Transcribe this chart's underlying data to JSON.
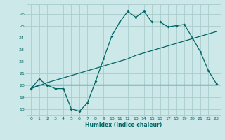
{
  "xlabel": "Humidex (Indice chaleur)",
  "bg_color": "#cde8e8",
  "grid_color": "#a8cccc",
  "line_color": "#006666",
  "xlim": [
    -0.5,
    23.5
  ],
  "ylim": [
    17.5,
    26.8
  ],
  "yticks": [
    18,
    19,
    20,
    21,
    22,
    23,
    24,
    25,
    26
  ],
  "xticks": [
    0,
    1,
    2,
    3,
    4,
    5,
    6,
    7,
    8,
    9,
    10,
    11,
    12,
    13,
    14,
    15,
    16,
    17,
    18,
    19,
    20,
    21,
    22,
    23
  ],
  "line1_x": [
    0,
    1,
    2,
    3,
    4,
    5,
    6,
    7,
    8,
    9,
    10,
    11,
    12,
    13,
    14,
    15,
    16,
    17,
    18,
    19,
    20,
    21,
    22,
    23
  ],
  "line1_y": [
    19.7,
    20.5,
    20.0,
    19.7,
    19.7,
    18.0,
    17.8,
    18.5,
    20.3,
    22.2,
    24.1,
    25.3,
    26.2,
    25.7,
    26.2,
    25.3,
    25.3,
    24.9,
    25.0,
    25.1,
    24.0,
    22.8,
    21.2,
    20.1
  ],
  "line2_x": [
    0,
    2,
    3,
    4,
    5,
    6,
    7,
    8,
    9,
    10,
    11,
    12,
    13,
    14,
    15,
    16,
    17,
    18,
    19,
    20,
    21,
    22,
    23
  ],
  "line2_y": [
    19.7,
    20.2,
    20.4,
    20.6,
    20.8,
    21.0,
    21.2,
    21.4,
    21.6,
    21.8,
    22.0,
    22.2,
    22.5,
    22.7,
    22.9,
    23.1,
    23.3,
    23.5,
    23.7,
    23.9,
    24.1,
    24.3,
    24.5
  ],
  "line3_x": [
    0,
    1,
    2,
    3,
    4,
    5,
    6,
    7,
    8,
    9,
    10,
    11,
    12,
    13,
    14,
    15,
    16,
    17,
    18,
    19,
    20,
    21,
    22,
    23
  ],
  "line3_y": [
    19.7,
    20.0,
    20.0,
    20.0,
    20.0,
    20.0,
    20.0,
    20.0,
    20.0,
    20.0,
    20.0,
    20.0,
    20.0,
    20.0,
    20.0,
    20.0,
    20.0,
    20.0,
    20.0,
    20.0,
    20.0,
    20.0,
    20.0,
    20.0
  ],
  "xtick_labels": [
    "0",
    "1",
    "2",
    "3",
    "4",
    "5",
    "6",
    "7",
    "8",
    "9",
    "10",
    "11",
    "12",
    "13",
    "14",
    "15",
    "16",
    "17",
    "18",
    "19",
    "20",
    "21",
    "22",
    "23"
  ]
}
